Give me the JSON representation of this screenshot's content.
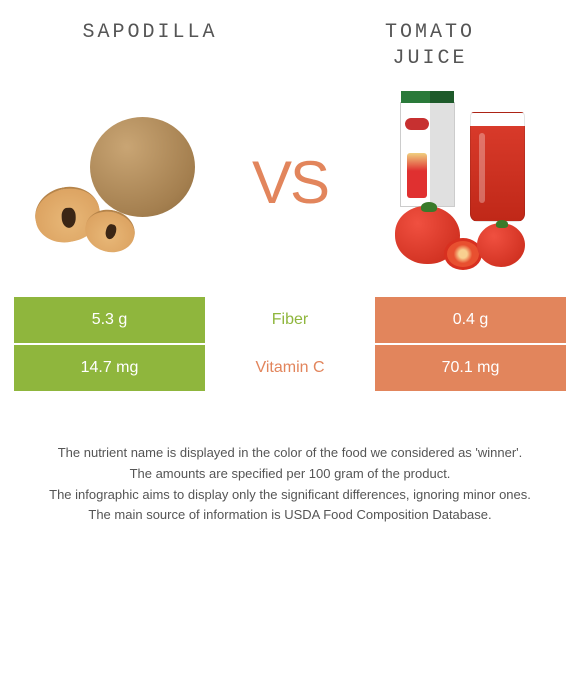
{
  "titles": {
    "left": "SAPODILLA",
    "right_line1": "TOMATO",
    "right_line2": "JUICE"
  },
  "vs_label": "VS",
  "colors": {
    "green": "#8fb63d",
    "orange": "#e2855c"
  },
  "rows": [
    {
      "left_value": "5.3 g",
      "nutrient": "Fiber",
      "right_value": "0.4 g",
      "winner": "left"
    },
    {
      "left_value": "14.7 mg",
      "nutrient": "Vitamin C",
      "right_value": "70.1 mg",
      "winner": "right"
    }
  ],
  "footer": {
    "line1": "The nutrient name is displayed in the color of the food we considered as 'winner'.",
    "line2": "The amounts are specified per 100 gram of the product.",
    "line3": "The infographic aims to display only the significant differences, ignoring minor ones.",
    "line4": "The main source of information is USDA Food Composition Database."
  }
}
